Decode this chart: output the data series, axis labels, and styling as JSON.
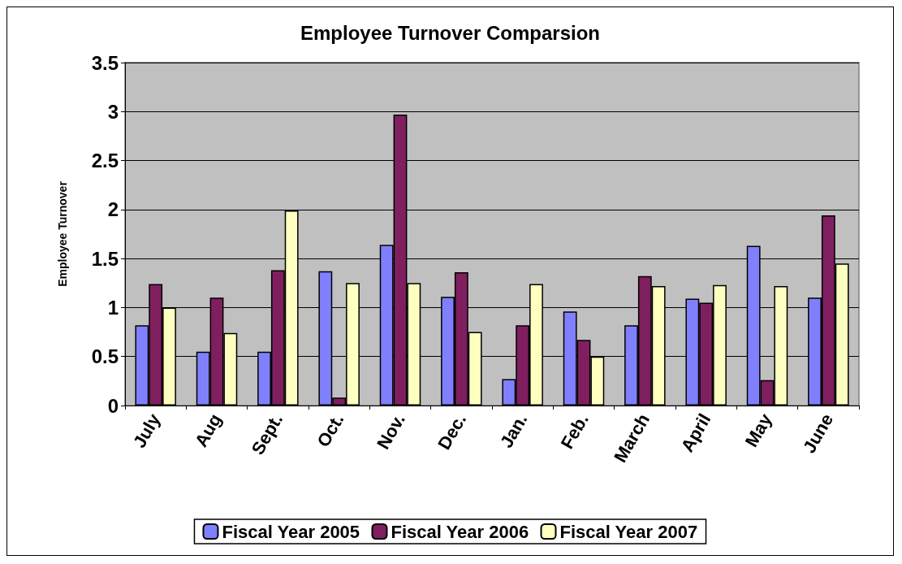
{
  "chart_data": {
    "type": "bar",
    "title": "Employee Turnover Comparsion",
    "ylabel": "Employee Turnover",
    "categories": [
      "July",
      "Aug",
      "Sept.",
      "Oct.",
      "Nov.",
      "Dec.",
      "Jan.",
      "Feb.",
      "March",
      "April",
      "May",
      "June"
    ],
    "series": [
      {
        "name": "Fiscal Year 2005",
        "color": "#8080ff",
        "values": [
          0.82,
          0.55,
          0.55,
          1.37,
          1.64,
          1.11,
          0.27,
          0.96,
          0.82,
          1.09,
          1.63,
          1.1
        ]
      },
      {
        "name": "Fiscal Year 2006",
        "color": "#801f60",
        "values": [
          1.24,
          1.1,
          1.38,
          0.08,
          2.97,
          1.36,
          0.82,
          0.67,
          1.32,
          1.05,
          0.26,
          1.94
        ]
      },
      {
        "name": "Fiscal Year 2007",
        "color": "#ffffc0",
        "values": [
          1.0,
          0.74,
          1.99,
          1.25,
          1.25,
          0.75,
          1.24,
          0.5,
          1.22,
          1.23,
          1.22,
          1.45
        ]
      }
    ],
    "ylim": [
      0,
      3.5
    ],
    "yticks": [
      0,
      0.5,
      1,
      1.5,
      2,
      2.5,
      3,
      3.5
    ],
    "grid": "y",
    "legend": "bottom"
  }
}
